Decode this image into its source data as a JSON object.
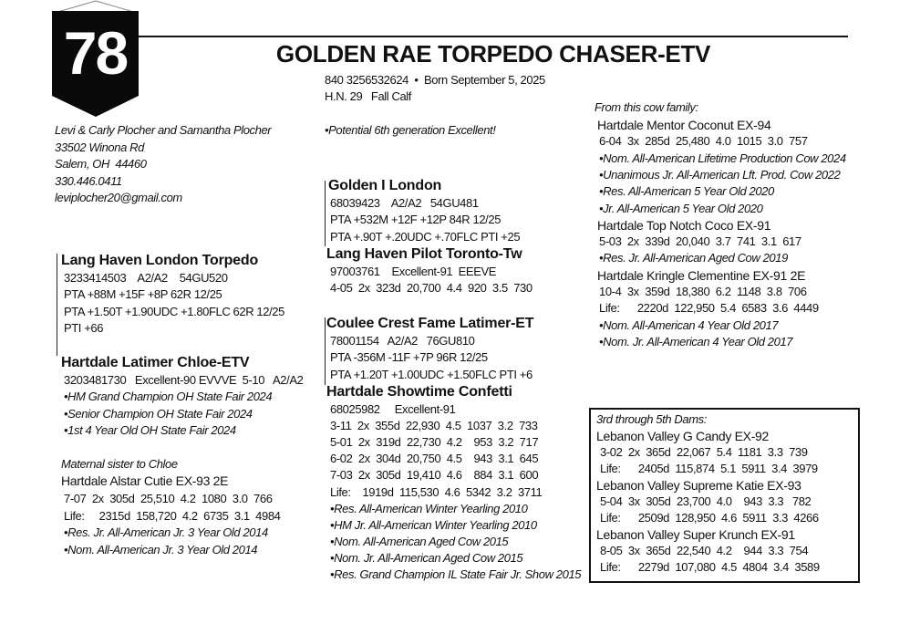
{
  "tag": {
    "number": "78"
  },
  "header": {
    "title": "GOLDEN RAE TORPEDO CHASER-ETV",
    "id_line": "840 3256532624  •  Born September 5, 2025",
    "hn_line": "H.N. 29   Fall Calf",
    "note": "•Potential 6th generation Excellent!"
  },
  "owner": {
    "lines": [
      "Levi & Carly Plocher and Samantha Plocher",
      "33502 Winona Rd",
      "Salem, OH  44460",
      "330.446.0411",
      "leviplocher20@gmail.com"
    ]
  },
  "sire": {
    "name": "Golden I London",
    "lines": [
      "68039423    A2/A2   54GU481",
      "PTA +532M +12F +12P 84R 12/25",
      "PTA +.90T +.20UDC +.70FLC PTI +25"
    ]
  },
  "sire_sire": {
    "name": "Lang Haven Pilot Toronto-Tw",
    "lines": [
      "97003761    Excellent-91  EEEVE",
      "4-05  2x  323d  20,700  4.4  920  3.5  730"
    ]
  },
  "dam_sire": {
    "name": "Lang Haven London Torpedo",
    "lines": [
      "3233414503    A2/A2    54GU520",
      "PTA +88M +15F +8P 62R 12/25",
      "PTA +1.50T +1.90UDC +1.80FLC 62R 12/25",
      "PTI +66"
    ]
  },
  "dam": {
    "name": "Hartdale Latimer Chloe-ETV",
    "lines": [
      "3203481730   Excellent-90 EVVVE  5-10   A2/A2",
      "•HM Grand Champion OH State Fair 2024",
      "•Senior Champion OH State Fair 2024",
      "•1st 4 Year Old OH State Fair 2024"
    ]
  },
  "maternal_sister": {
    "heading": "Maternal sister to Chloe",
    "name": "Hartdale Alstar Cutie EX-93 2E",
    "lines": [
      "7-07  2x  305d  25,510  4.2  1080  3.0  766",
      "Life:     2315d  158,720  4.2  6735  3.1  4984",
      "•Res. Jr. All-American Jr. 3 Year Old 2014",
      "•Nom. All-American Jr. 3 Year Old 2014"
    ]
  },
  "granddam_sire": {
    "name": "Coulee Crest Fame Latimer-ET",
    "lines": [
      "78001154   A2/A2   76GU810",
      "PTA -356M -11F +7P 96R 12/25",
      "PTA +1.20T +1.00UDC +1.50FLC PTI +6"
    ]
  },
  "granddam": {
    "name": "Hartdale Showtime Confetti",
    "lines": [
      "68025982     Excellent-91",
      "3-11  2x  355d  22,930  4.5  1037  3.2  733",
      "5-01  2x  319d  22,730  4.2    953  3.2  717",
      "6-02  2x  304d  20,750  4.5    943  3.1  645",
      "7-03  2x  305d  19,410  4.6    884  3.1  600",
      "Life:    1919d  115,530  4.6  5342  3.2  3711",
      "•Res. All-American Winter Yearling 2010",
      "•HM Jr. All-American Winter Yearling 2010",
      "•Nom. All-American Aged Cow 2015",
      "•Nom. Jr. All-American Aged Cow 2015",
      "•Res. Grand Champion IL State Fair Jr. Show 2015"
    ]
  },
  "cow_family": {
    "heading": "From this cow family:",
    "cows": [
      {
        "name": "Hartdale Mentor Coconut EX-94",
        "lines": [
          "6-04  3x  285d  25,480  4.0  1015  3.0  757",
          "•Nom. All-American Lifetime Production Cow 2024",
          "•Unanimous Jr. All-American Lft. Prod. Cow 2022",
          "•Res. All-American 5 Year Old 2020",
          "•Jr. All-American 5 Year Old 2020"
        ]
      },
      {
        "name": "Hartdale Top Notch Coco EX-91",
        "lines": [
          "5-03  2x  339d  20,040  3.7  741  3.1  617",
          "•Res. Jr. All-American Aged Cow 2019"
        ]
      },
      {
        "name": "Hartdale Kringle Clementine EX-91 2E",
        "lines": [
          "10-4  3x  359d  18,380  6.2  1148  3.8  706",
          "Life:      2220d  122,950  5.4  6583  3.6  4449",
          "•Nom. All-American 4 Year Old 2017",
          "•Nom. Jr. All-American 4 Year Old 2017"
        ]
      }
    ]
  },
  "dams_3_5": {
    "heading": "3rd through 5th Dams:",
    "cows": [
      {
        "name": "Lebanon Valley G Candy EX-92",
        "lines": [
          "3-02  2x  365d  22,067  5.4  1181  3.3  739",
          "Life:      2405d  115,874  5.1  5911  3.4  3979"
        ]
      },
      {
        "name": "Lebanon Valley Supreme Katie EX-93",
        "lines": [
          "5-04  3x  305d  23,700  4.0    943  3.3   782",
          "Life:      2509d  128,950  4.6  5911  3.3  4266"
        ]
      },
      {
        "name": "Lebanon Valley Super Krunch EX-91",
        "lines": [
          "8-05  3x  365d  22,540  4.2    944  3.3  754",
          "Life:      2279d  107,080  4.5  4804  3.4  3589"
        ]
      }
    ]
  }
}
